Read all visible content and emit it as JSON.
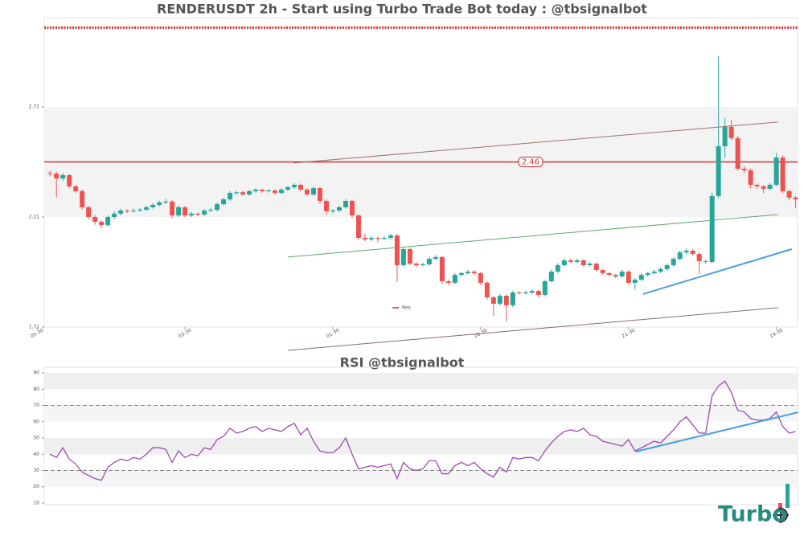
{
  "chart_data": [
    {
      "type": "candlestick",
      "title": "RENDERUSDT 2h - Start using Turbo Trade Bot today : @tbsignalbot",
      "up_color": "#26a69a",
      "down_color": "#ef5350",
      "xlim": [
        -0.9,
        116.3
      ],
      "ylim": [
        1.71,
        3.115
      ],
      "yticks": [
        1.71,
        2.21,
        2.71
      ],
      "xticks": [
        {
          "value": -2,
          "label": "05-30"
        },
        {
          "value": 21,
          "label": "03-30"
        },
        {
          "value": 44,
          "label": "01-30"
        },
        {
          "value": 67,
          "label": "28-30"
        },
        {
          "value": 90,
          "label": "21-30"
        },
        {
          "value": 113,
          "label": "19-30"
        }
      ],
      "band": [
        2.21,
        2.71
      ],
      "levels": [
        {
          "value": 2.46,
          "color": "#d32f2f"
        }
      ],
      "top_line": {
        "value": 3.07,
        "color": "#d32f2f"
      },
      "legend": {
        "label": "Res",
        "color": "#d32f2f"
      },
      "trend_lines": [
        {
          "x": [
            37.9,
            113.25
          ],
          "y": [
            2.455,
            2.641
          ],
          "color": "#a07070"
        },
        {
          "x": [
            37,
            113.25
          ],
          "y": [
            2.028,
            2.221
          ],
          "color": "#5aaa6a"
        },
        {
          "x": [
            37,
            113.25
          ],
          "y": [
            1.604,
            1.798
          ],
          "color": "#8a6a6a"
        },
        {
          "x": [
            92.25,
            115.4
          ],
          "y": [
            1.86,
            2.064
          ],
          "color": "#4a9fe0"
        }
      ],
      "candles": [
        [
          2.41,
          2.42,
          2.395,
          2.407
        ],
        [
          2.407,
          2.415,
          2.3,
          2.385
        ],
        [
          2.385,
          2.41,
          2.375,
          2.4
        ],
        [
          2.4,
          2.405,
          2.34,
          2.349
        ],
        [
          2.349,
          2.355,
          2.32,
          2.327
        ],
        [
          2.327,
          2.335,
          2.245,
          2.254
        ],
        [
          2.254,
          2.26,
          2.2,
          2.21
        ],
        [
          2.21,
          2.218,
          2.175,
          2.188
        ],
        [
          2.188,
          2.195,
          2.16,
          2.173
        ],
        [
          2.173,
          2.218,
          2.165,
          2.21
        ],
        [
          2.21,
          2.235,
          2.2,
          2.225
        ],
        [
          2.225,
          2.248,
          2.218,
          2.239
        ],
        [
          2.239,
          2.245,
          2.228,
          2.236
        ],
        [
          2.236,
          2.248,
          2.23,
          2.239
        ],
        [
          2.239,
          2.25,
          2.234,
          2.243
        ],
        [
          2.243,
          2.262,
          2.238,
          2.254
        ],
        [
          2.254,
          2.272,
          2.248,
          2.265
        ],
        [
          2.265,
          2.284,
          2.258,
          2.276
        ],
        [
          2.276,
          2.292,
          2.268,
          2.28
        ],
        [
          2.28,
          2.286,
          2.205,
          2.217
        ],
        [
          2.217,
          2.262,
          2.21,
          2.254
        ],
        [
          2.254,
          2.26,
          2.208,
          2.217
        ],
        [
          2.217,
          2.232,
          2.21,
          2.225
        ],
        [
          2.225,
          2.23,
          2.214,
          2.221
        ],
        [
          2.221,
          2.246,
          2.215,
          2.239
        ],
        [
          2.239,
          2.25,
          2.232,
          2.242
        ],
        [
          2.242,
          2.275,
          2.236,
          2.268
        ],
        [
          2.268,
          2.298,
          2.262,
          2.29
        ],
        [
          2.29,
          2.328,
          2.284,
          2.319
        ],
        [
          2.319,
          2.33,
          2.31,
          2.322
        ],
        [
          2.322,
          2.328,
          2.305,
          2.312
        ],
        [
          2.312,
          2.334,
          2.306,
          2.327
        ],
        [
          2.327,
          2.34,
          2.32,
          2.334
        ],
        [
          2.334,
          2.338,
          2.32,
          2.327
        ],
        [
          2.327,
          2.336,
          2.321,
          2.33
        ],
        [
          2.33,
          2.335,
          2.312,
          2.319
        ],
        [
          2.319,
          2.34,
          2.314,
          2.334
        ],
        [
          2.334,
          2.352,
          2.328,
          2.345
        ],
        [
          2.345,
          2.364,
          2.338,
          2.356
        ],
        [
          2.356,
          2.362,
          2.326,
          2.334
        ],
        [
          2.334,
          2.34,
          2.305,
          2.312
        ],
        [
          2.312,
          2.348,
          2.306,
          2.341
        ],
        [
          2.341,
          2.346,
          2.27,
          2.283
        ],
        [
          2.283,
          2.29,
          2.22,
          2.236
        ],
        [
          2.236,
          2.246,
          2.228,
          2.239
        ],
        [
          2.239,
          2.262,
          2.232,
          2.254
        ],
        [
          2.254,
          2.292,
          2.248,
          2.283
        ],
        [
          2.283,
          2.288,
          2.205,
          2.217
        ],
        [
          2.217,
          2.222,
          2.105,
          2.115
        ],
        [
          2.115,
          2.135,
          2.1,
          2.108
        ],
        [
          2.108,
          2.124,
          2.1,
          2.115
        ],
        [
          2.115,
          2.122,
          2.095,
          2.111
        ],
        [
          2.111,
          2.124,
          2.104,
          2.115
        ],
        [
          2.115,
          2.135,
          2.108,
          2.126
        ],
        [
          2.126,
          2.132,
          1.915,
          1.991
        ],
        [
          1.991,
          2.072,
          1.984,
          2.064
        ],
        [
          2.064,
          2.07,
          1.99,
          1.998
        ],
        [
          1.998,
          2.004,
          1.982,
          1.991
        ],
        [
          1.991,
          2.002,
          1.985,
          1.995
        ],
        [
          1.995,
          2.028,
          1.988,
          2.02
        ],
        [
          2.02,
          2.036,
          2.012,
          2.028
        ],
        [
          2.028,
          2.034,
          1.905,
          1.918
        ],
        [
          1.918,
          1.926,
          1.9,
          1.911
        ],
        [
          1.911,
          1.955,
          1.904,
          1.947
        ],
        [
          1.947,
          1.962,
          1.94,
          1.955
        ],
        [
          1.955,
          1.97,
          1.948,
          1.962
        ],
        [
          1.962,
          1.968,
          1.946,
          1.955
        ],
        [
          1.955,
          1.96,
          1.9,
          1.911
        ],
        [
          1.911,
          1.918,
          1.835,
          1.845
        ],
        [
          1.845,
          1.852,
          1.76,
          1.816
        ],
        [
          1.816,
          1.86,
          1.808,
          1.852
        ],
        [
          1.852,
          1.858,
          1.735,
          1.809
        ],
        [
          1.809,
          1.875,
          1.8,
          1.867
        ],
        [
          1.867,
          1.874,
          1.858,
          1.865
        ],
        [
          1.865,
          1.876,
          1.858,
          1.867
        ],
        [
          1.867,
          1.882,
          1.86,
          1.874
        ],
        [
          1.874,
          1.88,
          1.845,
          1.856
        ],
        [
          1.856,
          1.926,
          1.85,
          1.918
        ],
        [
          1.918,
          1.97,
          1.912,
          1.962
        ],
        [
          1.962,
          2.0,
          1.955,
          1.991
        ],
        [
          1.991,
          2.022,
          1.985,
          2.013
        ],
        [
          2.013,
          2.02,
          2.0,
          2.006
        ],
        [
          2.006,
          2.02,
          2.0,
          2.013
        ],
        [
          2.013,
          2.018,
          1.984,
          1.991
        ],
        [
          1.991,
          2.006,
          1.984,
          1.998
        ],
        [
          1.998,
          2.004,
          1.962,
          1.969
        ],
        [
          1.969,
          1.975,
          1.948,
          1.955
        ],
        [
          1.955,
          1.96,
          1.94,
          1.947
        ],
        [
          1.947,
          1.952,
          1.932,
          1.94
        ],
        [
          1.94,
          1.97,
          1.934,
          1.962
        ],
        [
          1.962,
          1.968,
          1.904,
          1.911
        ],
        [
          1.911,
          1.932,
          1.88,
          1.925
        ],
        [
          1.925,
          1.955,
          1.918,
          1.947
        ],
        [
          1.947,
          1.962,
          1.94,
          1.955
        ],
        [
          1.955,
          1.97,
          1.948,
          1.962
        ],
        [
          1.962,
          1.982,
          1.955,
          1.973
        ],
        [
          1.973,
          2.0,
          1.966,
          1.991
        ],
        [
          1.991,
          2.028,
          1.984,
          2.02
        ],
        [
          2.02,
          2.058,
          2.012,
          2.049
        ],
        [
          2.049,
          2.066,
          2.04,
          2.057
        ],
        [
          2.057,
          2.064,
          2.034,
          2.042
        ],
        [
          2.042,
          2.05,
          1.95,
          2.009
        ],
        [
          2.009,
          2.016,
          1.998,
          2.006
        ],
        [
          2.006,
          2.32,
          1.998,
          2.305
        ],
        [
          2.305,
          2.94,
          2.295,
          2.531
        ],
        [
          2.531,
          2.66,
          2.48,
          2.619
        ],
        [
          2.619,
          2.65,
          2.56,
          2.568
        ],
        [
          2.568,
          2.578,
          2.42,
          2.429
        ],
        [
          2.429,
          2.44,
          2.41,
          2.422
        ],
        [
          2.422,
          2.43,
          2.34,
          2.356
        ],
        [
          2.356,
          2.362,
          2.338,
          2.349
        ],
        [
          2.349,
          2.355,
          2.318,
          2.338
        ],
        [
          2.338,
          2.364,
          2.33,
          2.356
        ],
        [
          2.356,
          2.5,
          2.35,
          2.48
        ],
        [
          2.48,
          2.49,
          2.318,
          2.327
        ],
        [
          2.327,
          2.335,
          2.285,
          2.298
        ],
        [
          2.298,
          2.305,
          2.25,
          2.29
        ]
      ]
    },
    {
      "type": "line",
      "title": "RSI @tbsignalbot",
      "color": "#9b4bb0",
      "xlim": [
        -0.9,
        116.3
      ],
      "ylim": [
        9,
        93.5
      ],
      "yticks": [
        10,
        20,
        30,
        40,
        50,
        60,
        70,
        80,
        90
      ],
      "hlines": [
        30,
        70
      ],
      "bands": [
        [
          80,
          90
        ],
        [
          60,
          70
        ],
        [
          40,
          50
        ],
        [
          20,
          30
        ]
      ],
      "trend_lines": [
        {
          "x": [
            91.1,
            116.4
          ],
          "y": [
            41.6,
            65.8
          ],
          "color": "#4a9fe0"
        }
      ],
      "values": [
        40,
        38,
        44,
        37,
        34,
        29,
        27,
        25,
        24,
        32,
        35,
        37,
        36,
        38,
        37,
        40,
        44,
        44,
        43,
        35,
        42,
        38,
        40,
        39,
        44,
        43,
        49,
        51,
        56,
        53,
        54,
        56,
        57,
        54,
        56,
        55,
        54,
        57,
        59,
        52,
        56,
        48,
        42,
        41,
        41,
        44,
        50,
        40,
        31,
        32,
        33,
        32,
        33,
        34,
        25,
        35,
        31,
        30,
        31,
        36,
        36,
        28,
        28,
        33,
        35,
        33,
        35,
        31,
        28,
        26,
        32,
        29,
        38,
        37,
        38,
        38,
        36,
        42,
        47,
        51,
        54,
        55,
        54,
        56,
        52,
        51,
        48,
        47,
        46,
        45,
        49,
        42,
        44,
        46,
        48,
        47,
        51,
        55,
        60,
        63,
        58,
        53,
        53,
        76,
        82,
        85,
        78,
        67,
        66,
        62,
        61,
        61,
        62,
        66,
        57,
        53,
        54
      ]
    }
  ],
  "logo": "Turbo"
}
